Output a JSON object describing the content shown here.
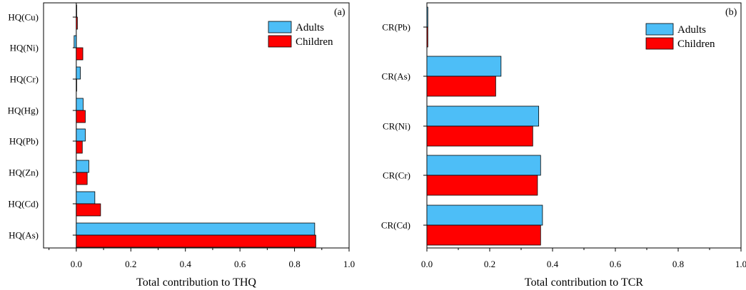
{
  "colors": {
    "adults": "#4DBEF7",
    "children": "#FF0000",
    "frame": "#000000"
  },
  "chart_data": [
    {
      "type": "bar",
      "orientation": "horizontal",
      "panel_label": "(a)",
      "title": "",
      "xlabel": "Total contribution to THQ",
      "ylabel": "",
      "xlim": [
        -0.12,
        1.0
      ],
      "xticks": [
        0.0,
        0.2,
        0.4,
        0.6,
        0.8,
        1.0
      ],
      "xtick_labels": [
        "0.0",
        "0.2",
        "0.4",
        "0.6",
        "0.8",
        "1.0"
      ],
      "categories": [
        "HQ(Cu)",
        "HQ(Ni)",
        "HQ(Cr)",
        "HQ(Hg)",
        "HQ(Pb)",
        "HQ(Zn)",
        "HQ(Cd)",
        "HQ(As)"
      ],
      "series": [
        {
          "name": "Adults",
          "values": [
            0.001,
            -0.008,
            0.015,
            0.025,
            0.033,
            0.046,
            0.068,
            0.874
          ]
        },
        {
          "name": "Children",
          "values": [
            0.004,
            0.024,
            0.0,
            0.033,
            0.022,
            0.04,
            0.089,
            0.878
          ]
        }
      ],
      "legend": {
        "position": "top-right",
        "entries": [
          "Adults",
          "Children"
        ]
      }
    },
    {
      "type": "bar",
      "orientation": "horizontal",
      "panel_label": "(b)",
      "title": "",
      "xlabel": "Total contribution to TCR",
      "ylabel": "",
      "xlim": [
        0.0,
        1.0
      ],
      "xticks": [
        0.0,
        0.2,
        0.4,
        0.6,
        0.8,
        1.0
      ],
      "xtick_labels": [
        "0.0",
        "0.2",
        "0.4",
        "0.6",
        "0.8",
        "1.0"
      ],
      "categories": [
        "CR(Pb)",
        "CR(As)",
        "CR(Ni)",
        "CR(Cr)",
        "CR(Cd)"
      ],
      "series": [
        {
          "name": "Adults",
          "values": [
            0.003,
            0.236,
            0.356,
            0.362,
            0.368
          ]
        },
        {
          "name": "Children",
          "values": [
            0.003,
            0.219,
            0.337,
            0.352,
            0.362
          ]
        }
      ],
      "legend": {
        "position": "top-right",
        "entries": [
          "Adults",
          "Children"
        ]
      }
    }
  ]
}
